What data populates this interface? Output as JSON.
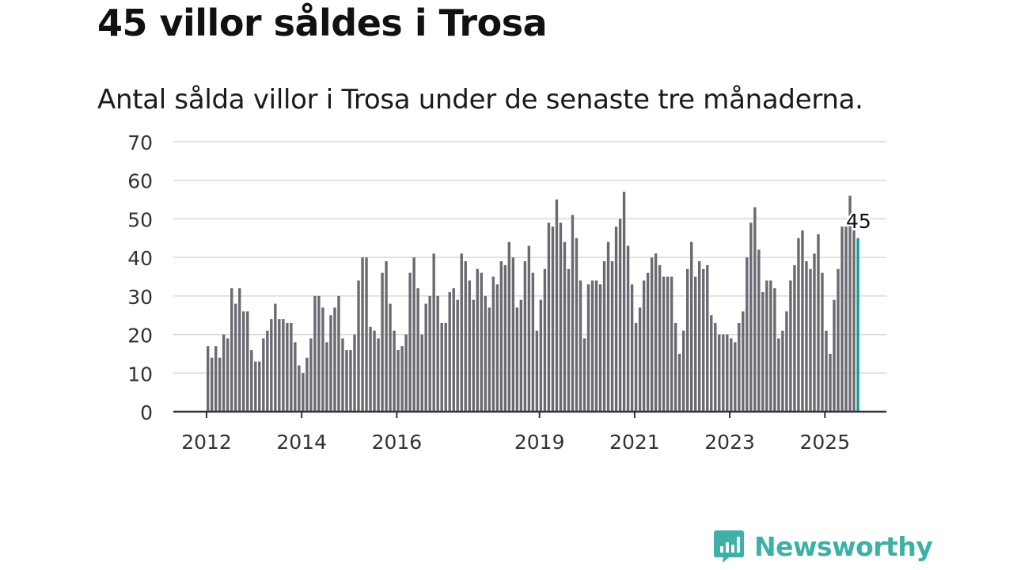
{
  "title": "45 villor såldes i Trosa",
  "subtitle": "Antal sålda villor i Trosa under de senaste tre månaderna.",
  "brand": {
    "name": "Newsworthy",
    "color": "#3fb0a6",
    "icon": "newsworthy-chat-bars-icon"
  },
  "colors": {
    "bar": "#6b6a72",
    "highlight": "#169b92",
    "grid": "#d9d9d9",
    "axis": "#333333"
  },
  "chart_data": {
    "type": "bar",
    "ylim": [
      0,
      70
    ],
    "yticks": [
      0,
      10,
      20,
      30,
      40,
      50,
      60,
      70
    ],
    "grid": true,
    "x_tick_labels": [
      "2012",
      "2014",
      "2016",
      "2019",
      "2021",
      "2023",
      "2025"
    ],
    "start": "2012-01",
    "values": [
      17,
      14,
      17,
      14,
      20,
      19,
      32,
      28,
      32,
      26,
      26,
      16,
      13,
      13,
      19,
      21,
      24,
      28,
      24,
      24,
      23,
      23,
      18,
      12,
      10,
      14,
      19,
      30,
      30,
      27,
      18,
      25,
      27,
      30,
      19,
      16,
      16,
      20,
      34,
      40,
      40,
      22,
      21,
      19,
      36,
      39,
      28,
      21,
      16,
      17,
      20,
      36,
      40,
      32,
      20,
      28,
      30,
      41,
      30,
      23,
      23,
      31,
      32,
      29,
      41,
      39,
      34,
      29,
      37,
      36,
      30,
      27,
      35,
      33,
      39,
      38,
      44,
      40,
      27,
      29,
      39,
      43,
      36,
      21,
      29,
      37,
      49,
      48,
      55,
      49,
      44,
      37,
      51,
      45,
      34,
      19,
      33,
      34,
      34,
      33,
      39,
      44,
      39,
      48,
      50,
      57,
      43,
      33,
      23,
      27,
      34,
      36,
      40,
      41,
      38,
      35,
      35,
      35,
      23,
      15,
      21,
      37,
      44,
      35,
      39,
      37,
      38,
      25,
      23,
      20,
      20,
      20,
      19,
      18,
      23,
      26,
      40,
      49,
      53,
      42,
      31,
      34,
      34,
      32,
      19,
      21,
      26,
      34,
      38,
      45,
      47,
      39,
      37,
      41,
      46,
      36,
      21,
      15,
      29,
      37,
      48,
      48,
      56,
      47,
      45
    ],
    "highlight_last": true,
    "highlight_label": "45"
  }
}
